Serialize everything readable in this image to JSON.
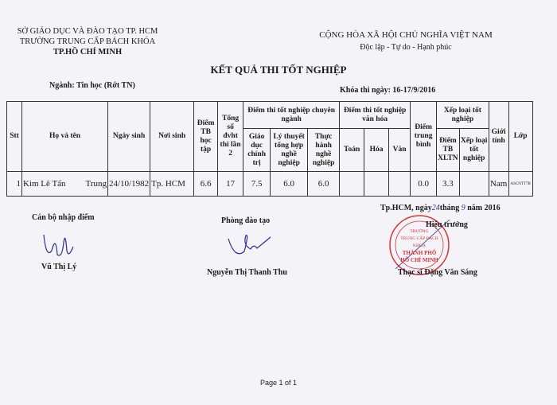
{
  "header_left": {
    "line1": "SỞ GIÁO DỤC VÀ ĐÀO TẠO TP. HCM",
    "line2": "TRƯỜNG TRUNG CẤP BÁCH KHÓA",
    "line3": "TP.HỒ CHÍ MINH"
  },
  "header_right": {
    "line1": "CỘNG HÒA XÃ HỘI CHỦ NGHĨA VIỆT NAM",
    "line2": "Độc lập - Tự do - Hạnh phúc"
  },
  "title": "KẾT QUẢ THI TỐT NGHIỆP",
  "major": "Ngành: Tin học (Rớt TN)",
  "exam_date": "Khóa thi ngày: 16-17/9/2016",
  "table": {
    "headers": {
      "stt": "Stt",
      "name": "Họ và tên",
      "dob": "Ngày sinh",
      "pob": "Nơi sinh",
      "gpa": "Điểm TB học tập",
      "credits": "Tổng số đvht thi lần 2",
      "major_group": "Điểm thi tốt nghiệp chuyên ngành",
      "politics": "Giáo dục chính trị",
      "theory": "Lý thuyết tổng hợp nghề nghiệp",
      "practice": "Thực hành nghề nghiệp",
      "culture_group": "Điểm thi tốt nghiệp văn hóa",
      "math": "Toán",
      "chem": "Hóa",
      "lit": "Văn",
      "avg": "Điểm trung bình",
      "rank_group": "Xếp loại tốt nghiệp",
      "xltn": "Điểm TB XLTN",
      "rank": "Xếp loại tốt nghiệp",
      "gender": "Giới tính",
      "class": "Lớp"
    },
    "rows": [
      {
        "stt": "1",
        "first": "Kim Lê Tấn",
        "last": "Trung",
        "dob": "24/10/1982",
        "pob": "Tp. HCM",
        "gpa": "6.6",
        "credits": "17",
        "politics": "7.5",
        "theory": "6.0",
        "practice": "6.0",
        "math": "",
        "chem": "",
        "lit": "",
        "avg": "0.0",
        "xltn": "3.3",
        "rank": "",
        "gender": "Nam",
        "class": "ASCNTT7B"
      }
    ]
  },
  "signatures": {
    "entry_title": "Cán bộ nhập điểm",
    "entry_name": "Vũ Thị Lý",
    "training_title": "Phòng đào tạo",
    "training_name": "Nguyễn Thị Thanh Thu",
    "date_prefix": "Tp.HCM, ngày",
    "day": "24",
    "month_label": "tháng",
    "month": "9",
    "year_label": "năm 2016",
    "principal_title": "Hiệu trưởng",
    "principal_name": "Thạc sĩ Đặng Văn Sáng",
    "stamp_text": [
      "TRƯỜNG",
      "TRUNG CẤP BÁCH KHOA",
      "THÀNH PHỐ",
      "HỒ CHÍ MINH"
    ]
  },
  "footer": "Page 1 of 1",
  "colors": {
    "stamp": "#d8343a",
    "ink": "#2b2f8a"
  }
}
